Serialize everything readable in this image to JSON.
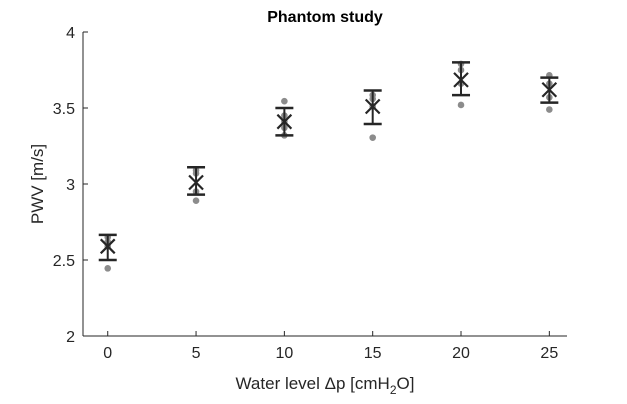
{
  "chart_data": {
    "type": "scatter",
    "title": "Phantom study",
    "xlabel": {
      "main": "Water level Δp [cmH",
      "sub": "2",
      "end": "O]"
    },
    "ylabel": "PWV [m/s]",
    "xlim": [
      -1.4,
      26
    ],
    "ylim": [
      2,
      4
    ],
    "xticks": [
      0,
      5,
      10,
      15,
      20,
      25
    ],
    "xtick_labels": [
      "0",
      "5",
      "10",
      "15",
      "20",
      "25"
    ],
    "yticks": [
      2,
      2.5,
      3,
      3.5,
      4
    ],
    "ytick_labels": [
      "2",
      "2.5",
      "3",
      "3.5",
      "4"
    ],
    "grid": false,
    "colors": {
      "points": "#8c8c8c",
      "mean": "#262626",
      "axes": "#262626"
    },
    "groups": [
      {
        "x": 0,
        "mean": 2.59,
        "err_low": 2.5,
        "err_high": 2.665,
        "points": [
          2.445,
          2.59,
          2.62,
          2.65
        ]
      },
      {
        "x": 5,
        "mean": 3.01,
        "err_low": 2.93,
        "err_high": 3.11,
        "points": [
          2.89,
          2.95,
          3.07,
          3.09
        ]
      },
      {
        "x": 10,
        "mean": 3.41,
        "err_low": 3.32,
        "err_high": 3.5,
        "points": [
          3.32,
          3.37,
          3.41,
          3.45,
          3.545
        ]
      },
      {
        "x": 15,
        "mean": 3.51,
        "err_low": 3.395,
        "err_high": 3.615,
        "points": [
          3.305,
          3.51,
          3.56,
          3.585
        ]
      },
      {
        "x": 20,
        "mean": 3.685,
        "err_low": 3.585,
        "err_high": 3.8,
        "points": [
          3.52,
          3.66,
          3.75,
          3.79
        ]
      },
      {
        "x": 25,
        "mean": 3.62,
        "err_low": 3.535,
        "err_high": 3.7,
        "points": [
          3.49,
          3.57,
          3.66,
          3.715
        ]
      }
    ]
  }
}
